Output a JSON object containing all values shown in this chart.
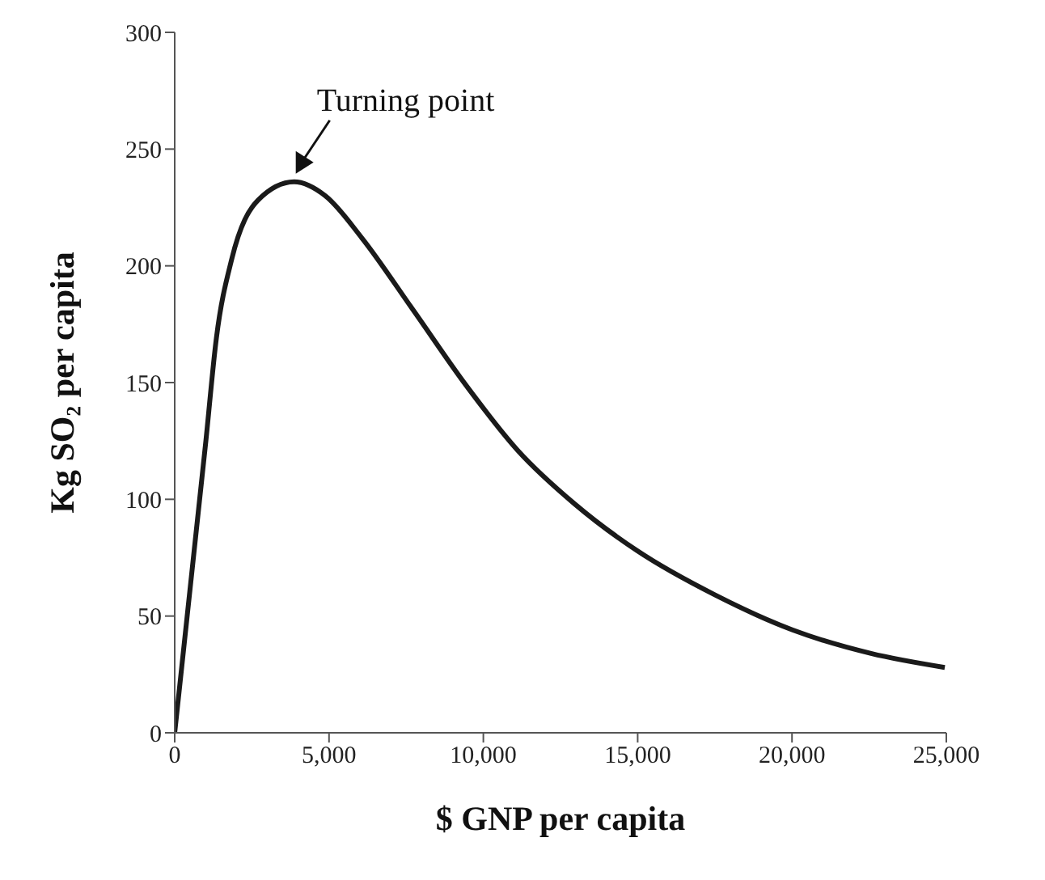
{
  "chart_data": {
    "type": "line",
    "xlabel": "$ GNP per capita",
    "ylabel": "Kg SO₂ per capita",
    "x": [
      0,
      1010,
      1350,
      1850,
      2690,
      3870,
      4880,
      6060,
      7730,
      9430,
      11110,
      12960,
      14980,
      17510,
      20030,
      22560,
      24950
    ],
    "series": [
      {
        "color": "#1a1a1a",
        "values": [
          0,
          125,
          169,
          203,
          228,
          236,
          230,
          212,
          181,
          149,
          121,
          98,
          78,
          59,
          44,
          34,
          28
        ]
      }
    ],
    "xlim": [
      0,
      25000
    ],
    "xticks": [
      {
        "value": 0,
        "label": "0"
      },
      {
        "value": 5000,
        "label": "5,000"
      },
      {
        "value": 10000,
        "label": "10,000"
      },
      {
        "value": 15000,
        "label": "15,000"
      },
      {
        "value": 20000,
        "label": "20,000"
      },
      {
        "value": 25000,
        "label": "25,000"
      }
    ],
    "ylim": [
      0,
      300
    ],
    "yticks": [
      0,
      50,
      100,
      150,
      200,
      250,
      300
    ],
    "annotations": [
      {
        "text": "Turning point",
        "x": 3870,
        "y": 236
      }
    ],
    "grid": false,
    "legend": false,
    "marker": "none",
    "line_style": "solid"
  }
}
